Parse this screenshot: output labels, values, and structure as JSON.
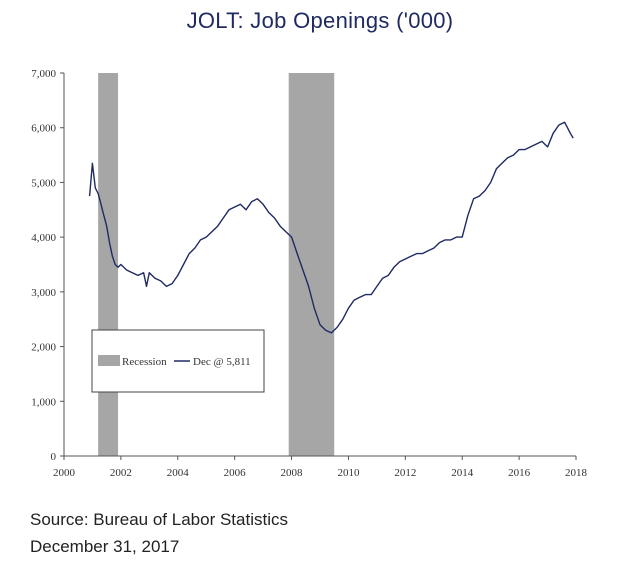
{
  "title": "JOLT: Job Openings ('000)",
  "footer": {
    "source": "Source: Bureau of Labor Statistics",
    "date": "December 31, 2017"
  },
  "colors": {
    "line": "#1f2a63",
    "recession": "#a6a6a6",
    "title": "#1f2a63"
  },
  "chart_data": {
    "type": "line",
    "title": "JOLT: Job Openings ('000)",
    "xlabel": "",
    "ylabel": "",
    "xlim": [
      2000,
      2018
    ],
    "ylim": [
      0,
      7000
    ],
    "grid": false,
    "legend_position": "lower-left",
    "x_ticks": [
      2000,
      2002,
      2004,
      2006,
      2008,
      2010,
      2012,
      2014,
      2016,
      2018
    ],
    "x_tick_labels": [
      "2000",
      "2002",
      "2004",
      "2006",
      "2008",
      "2010",
      "2012",
      "2014",
      "2016",
      "2018"
    ],
    "y_ticks": [
      0,
      1000,
      2000,
      3000,
      4000,
      5000,
      6000,
      7000
    ],
    "y_tick_labels": [
      "0",
      "1,000",
      "2,000",
      "3,000",
      "4,000",
      "5,000",
      "6,000",
      "7,000"
    ],
    "recessions": [
      {
        "start": 2001.2,
        "end": 2001.9
      },
      {
        "start": 2007.9,
        "end": 2009.5
      }
    ],
    "legend": {
      "recession_label": "Recession",
      "series_label": "Dec @ 5,811"
    },
    "series": [
      {
        "x": [
          2000.9,
          2001.0,
          2001.1,
          2001.2,
          2001.3,
          2001.4,
          2001.5,
          2001.6,
          2001.7,
          2001.8,
          2001.9,
          2002.0,
          2002.2,
          2002.4,
          2002.6,
          2002.8,
          2002.9,
          2003.0,
          2003.2,
          2003.4,
          2003.6,
          2003.8,
          2004.0,
          2004.2,
          2004.4,
          2004.6,
          2004.8,
          2005.0,
          2005.2,
          2005.4,
          2005.6,
          2005.8,
          2006.0,
          2006.2,
          2006.4,
          2006.6,
          2006.8,
          2007.0,
          2007.2,
          2007.4,
          2007.6,
          2007.8,
          2008.0,
          2008.2,
          2008.4,
          2008.6,
          2008.8,
          2009.0,
          2009.2,
          2009.4,
          2009.6,
          2009.8,
          2010.0,
          2010.2,
          2010.4,
          2010.6,
          2010.8,
          2011.0,
          2011.2,
          2011.4,
          2011.6,
          2011.8,
          2012.0,
          2012.2,
          2012.4,
          2012.6,
          2012.8,
          2013.0,
          2013.2,
          2013.4,
          2013.6,
          2013.8,
          2014.0,
          2014.2,
          2014.4,
          2014.6,
          2014.8,
          2015.0,
          2015.2,
          2015.4,
          2015.6,
          2015.8,
          2016.0,
          2016.2,
          2016.4,
          2016.6,
          2016.8,
          2017.0,
          2017.2,
          2017.4,
          2017.6,
          2017.8,
          2017.9
        ],
        "values": [
          4750,
          5350,
          4900,
          4800,
          4600,
          4400,
          4200,
          3900,
          3650,
          3500,
          3450,
          3500,
          3400,
          3350,
          3300,
          3350,
          3100,
          3350,
          3250,
          3200,
          3100,
          3150,
          3300,
          3500,
          3700,
          3800,
          3950,
          4000,
          4100,
          4200,
          4350,
          4500,
          4550,
          4600,
          4500,
          4650,
          4700,
          4600,
          4450,
          4350,
          4200,
          4100,
          4000,
          3700,
          3400,
          3100,
          2700,
          2400,
          2300,
          2250,
          2350,
          2500,
          2700,
          2850,
          2900,
          2950,
          2950,
          3100,
          3250,
          3300,
          3450,
          3550,
          3600,
          3650,
          3700,
          3700,
          3750,
          3800,
          3900,
          3950,
          3950,
          4000,
          4000,
          4400,
          4700,
          4750,
          4850,
          5000,
          5250,
          5350,
          5450,
          5500,
          5600,
          5600,
          5650,
          5700,
          5750,
          5650,
          5900,
          6050,
          6100,
          5900,
          5811
        ]
      }
    ]
  }
}
